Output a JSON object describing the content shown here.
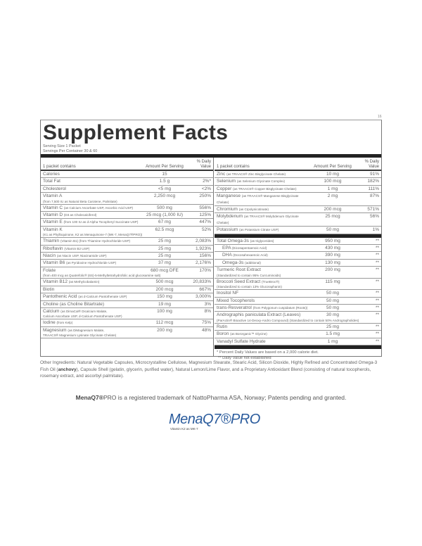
{
  "corner_mark": "16",
  "title": "Supplement Facts",
  "serving_size": "Serving Size 1 Packet",
  "servings_per_container": "Servings Per Container 30 & 60",
  "headers": {
    "contains": "1 packet contains",
    "amount": "Amount Per Serving",
    "dv": "% Daily Value"
  },
  "left_rows": [
    {
      "name": "Calories",
      "detail": "",
      "amount": "15",
      "dv": "",
      "sub": ""
    },
    {
      "name": "Total Fat",
      "detail": "",
      "amount": "1.5 g",
      "dv": "2%*",
      "sub": ""
    },
    {
      "name": "Cholesterol",
      "detail": "",
      "amount": "<5 mg",
      "dv": "<2%",
      "sub": ""
    },
    {
      "name": "Vitamin A",
      "detail": "",
      "amount": "2,250 mcg",
      "dv": "250%",
      "sub": "(from 7,500 IU as Natural Beta Carotene, Palmitate)"
    },
    {
      "name": "Vitamin C",
      "detail": "(as Calcium Ascorbate USP, Ascorbic Acid USP)",
      "amount": "500 mg",
      "dv": "556%",
      "sub": ""
    },
    {
      "name": "Vitamin D",
      "detail": "(D3 as Cholecalciferol)",
      "amount": "25 mcg (1,000 IU)",
      "dv": "125%",
      "sub": ""
    },
    {
      "name": "Vitamin E",
      "detail": "(from 100 IU as d-Alpha Tocopheryl Succinate USP)",
      "amount": "67 mg",
      "dv": "447%",
      "sub": ""
    },
    {
      "name": "Vitamin K",
      "detail": "",
      "amount": "62.5 mcg",
      "dv": "52%",
      "sub": "(K1 as Phylloquinone, K2 as Menaquinone-7 (MK-7, MenaQ7®PRO))"
    },
    {
      "name": "Thiamin",
      "detail": "(Vitamin B1) (from Thiamine Hydrochloride USP)",
      "amount": "25 mg",
      "dv": "2,083%",
      "sub": ""
    },
    {
      "name": "Riboflavin",
      "detail": "(Vitamin B2 USP)",
      "amount": "25 mg",
      "dv": "1,923%",
      "sub": ""
    },
    {
      "name": "Niacin",
      "detail": "(as Niacin USP, Niacinamide USP)",
      "amount": "25 mg",
      "dv": "156%",
      "sub": ""
    },
    {
      "name": "Vitamin B6",
      "detail": "(as Pyridoxine Hydrochloride USP)",
      "amount": "37 mg",
      "dv": "2,176%",
      "sub": ""
    },
    {
      "name": "Folate",
      "detail": "",
      "amount": "680 mcg DFE",
      "dv": "170%",
      "sub": "(from 400 mcg as Quatrefolic® (6S)-5-Methyltetrahydrofolic acid glucosamine salt)"
    },
    {
      "name": "Vitamin B12",
      "detail": "(as Methylcobalamin)",
      "amount": "500 mcg",
      "dv": "20,833%",
      "sub": ""
    },
    {
      "name": "Biotin",
      "detail": "",
      "amount": "200 mcg",
      "dv": "667%",
      "sub": ""
    },
    {
      "name": "Pantothenic Acid",
      "detail": "(as d-Calcium Pantothenate USP)",
      "amount": "150 mg",
      "dv": "3,000%",
      "sub": ""
    },
    {
      "name": "Choline (as Choline Bitartrate)",
      "detail": "",
      "amount": "19 mg",
      "dv": "3%",
      "sub": ""
    },
    {
      "name": "Calcium",
      "detail": "(as DimaCal® Dicalcium Malate,",
      "amount": "100 mg",
      "dv": "8%",
      "sub": "Calcium Ascorbate USP, d-Calcium Pantothenate USP)"
    },
    {
      "name": "Iodine",
      "detail": "(from Kelp)",
      "amount": "112 mcg",
      "dv": "75%",
      "sub": ""
    },
    {
      "name": "Magnesium",
      "detail": "(as DiMagnesium Malate,",
      "amount": "200 mg",
      "dv": "48%",
      "sub": "TRAACS® Magnesium Lysinate Glycinate Chelate)"
    }
  ],
  "right_rows_a": [
    {
      "name": "Zinc",
      "detail": "(as TRAACS® Zinc Bisglycinate Chelate)",
      "amount": "10 mg",
      "dv": "91%",
      "sub": ""
    },
    {
      "name": "Selenium",
      "detail": "(as Selenium Glycinate Complex)",
      "amount": "100 mcg",
      "dv": "182%",
      "sub": ""
    },
    {
      "name": "Copper",
      "detail": "(as TRAACS® Copper Bisglycinate Chelate)",
      "amount": "1 mg",
      "dv": "111%",
      "sub": ""
    },
    {
      "name": "Manganese",
      "detail": "(as TRAACS® Manganese Bisglycinate Chelate)",
      "amount": "2 mg",
      "dv": "87%",
      "sub": ""
    },
    {
      "name": "Chromium",
      "detail": "(as Crpolynicotinate)",
      "amount": "200 mcg",
      "dv": "571%",
      "sub": ""
    },
    {
      "name": "Molybdenum",
      "detail": "(as TRAACS® Molybdenum Glycinate Chelate)",
      "amount": "25 mcg",
      "dv": "56%",
      "sub": ""
    },
    {
      "name": "Potassium",
      "detail": "(as Potassium Citrate USP)",
      "amount": "50 mg",
      "dv": "1%",
      "sub": ""
    }
  ],
  "right_rows_b": [
    {
      "name": "Total Omega-3s",
      "detail": "(as triglycerides)",
      "amount": "950 mg",
      "dv": "**",
      "sub": "",
      "indent": false
    },
    {
      "name": "EPA",
      "detail": "(Eicosapentaenoic Acid)",
      "amount": "430 mg",
      "dv": "**",
      "sub": "",
      "indent": true
    },
    {
      "name": "DHA",
      "detail": "(Docosahexaenoic Acid)",
      "amount": "390 mg",
      "dv": "**",
      "sub": "",
      "indent": true
    },
    {
      "name": "Omega-3s",
      "detail": "(additional)",
      "amount": "130 mg",
      "dv": "**",
      "sub": "",
      "indent": true
    },
    {
      "name": "Turmeric Root Extract",
      "detail": "",
      "amount": "200 mg",
      "dv": "**",
      "sub": "(Standardized to contain 95% Curcuminoids)",
      "indent": false
    },
    {
      "name": "Broccoli Seed Extract",
      "detail": "(TrueBroc®)",
      "amount": "115 mg",
      "dv": "**",
      "sub": "(Standardized to contain 13% Glucoraphanin)",
      "indent": false
    },
    {
      "name": "Inositol NF",
      "detail": "",
      "amount": "50 mg",
      "dv": "**",
      "sub": "",
      "indent": false
    },
    {
      "name": "Mixed Tocopherols",
      "detail": "",
      "amount": "50 mg",
      "dv": "**",
      "sub": "",
      "indent": false
    },
    {
      "name": "trans-Resveratrol",
      "detail": "(from Polygonum cuspidatum (Roots))",
      "amount": "50 mg",
      "dv": "**",
      "sub": "",
      "indent": false
    },
    {
      "name": "Andrographis paniculata Extract (Leaves)",
      "detail": "",
      "amount": "30 mg",
      "dv": "**",
      "sub": "(ParActin® Bioactive 14-Deoxy-Andro Compound) (Standardized to contain 50% Andrographolides)",
      "indent": false
    },
    {
      "name": "Rutin",
      "detail": "",
      "amount": "25 mg",
      "dv": "**",
      "sub": "",
      "indent": false
    },
    {
      "name": "Boron",
      "detail": "(as Bororganic™ Glycine)",
      "amount": "1.5 mg",
      "dv": "**",
      "sub": "",
      "indent": false
    },
    {
      "name": "Vanadyl Sulfate Hydrate",
      "detail": "",
      "amount": "1 mg",
      "dv": "**",
      "sub": "",
      "indent": false
    }
  ],
  "footnotes": [
    "* Percent Daily Values are based on a 2,000 calorie diet.",
    "** Daily Value not established"
  ],
  "other_ingredients": {
    "pre": "Other Ingredients: Natural Vegetable Capsules, Microcrystalline Cellulose, Magnesium Stearate, Stearic Acid, Silicon Dioxide, Highly Refined and Concentrated Omega-3 Fish Oil (",
    "bold": "anchovy",
    "post": "), Capsule Shell (gelatin, glycerin, purified water), Natural Lemon/Lime Flavor, and a Proprietary Antioxidant Blend (consisting of natural tocopherols, rosemary extract, and ascorbyl palmitate)."
  },
  "trademark": {
    "brand": "MenaQ7®",
    "rest": "PRO is a registered trademark of NattoPharma ASA, Norway; Patents pending and granted."
  },
  "logo": {
    "text": "MenaQ7®PRO",
    "tagline": "Vitamin K2 as MK-7",
    "color": "#2a5b9c"
  }
}
